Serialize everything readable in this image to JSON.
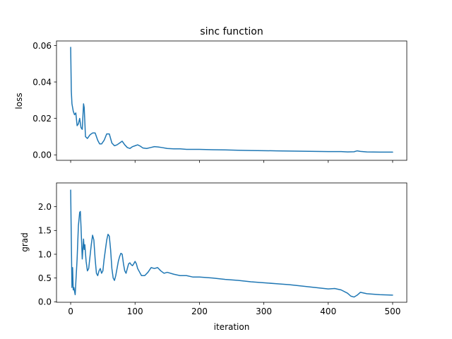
{
  "chart_data": [
    {
      "type": "line",
      "title": "sinc function",
      "xlabel": "",
      "ylabel": "loss",
      "xlim": [
        -22,
        522
      ],
      "ylim": [
        -0.003,
        0.0625
      ],
      "xticks": [
        0,
        100,
        200,
        300,
        400,
        500
      ],
      "xtick_labels_visible": false,
      "yticks": [
        0.0,
        0.02,
        0.04,
        0.06
      ],
      "ytick_labels": [
        "0.00",
        "0.02",
        "0.04",
        "0.06"
      ],
      "color": "#1f77b4",
      "series": [
        {
          "x": [
            0,
            1,
            2,
            4,
            6,
            8,
            10,
            12,
            14,
            16,
            18,
            20,
            21,
            23,
            26,
            30,
            34,
            38,
            42,
            45,
            48,
            52,
            56,
            60,
            64,
            68,
            72,
            76,
            80,
            84,
            88,
            92,
            96,
            100,
            104,
            108,
            112,
            118,
            124,
            130,
            136,
            142,
            150,
            160,
            170,
            180,
            190,
            200,
            220,
            240,
            260,
            280,
            300,
            320,
            340,
            360,
            380,
            400,
            420,
            430,
            440,
            445,
            450,
            460,
            480,
            500
          ],
          "y": [
            0.059,
            0.035,
            0.028,
            0.024,
            0.022,
            0.023,
            0.016,
            0.017,
            0.02,
            0.015,
            0.014,
            0.028,
            0.026,
            0.01,
            0.009,
            0.011,
            0.012,
            0.012,
            0.008,
            0.006,
            0.006,
            0.008,
            0.0115,
            0.0115,
            0.0065,
            0.005,
            0.0055,
            0.0065,
            0.0075,
            0.0055,
            0.004,
            0.0035,
            0.0045,
            0.005,
            0.0055,
            0.0048,
            0.0038,
            0.0035,
            0.004,
            0.0045,
            0.0043,
            0.004,
            0.0035,
            0.0033,
            0.0033,
            0.003,
            0.003,
            0.003,
            0.0028,
            0.0027,
            0.0025,
            0.0024,
            0.0023,
            0.0022,
            0.0021,
            0.002,
            0.0019,
            0.0018,
            0.0018,
            0.0016,
            0.0017,
            0.0022,
            0.0019,
            0.0016,
            0.0015,
            0.0015
          ]
        }
      ]
    },
    {
      "type": "line",
      "title": "",
      "xlabel": "iteration",
      "ylabel": "grad",
      "xlim": [
        -22,
        522
      ],
      "ylim": [
        -0.01,
        2.5
      ],
      "xticks": [
        0,
        100,
        200,
        300,
        400,
        500
      ],
      "xtick_labels": [
        "0",
        "100",
        "200",
        "300",
        "400",
        "500"
      ],
      "yticks": [
        0.0,
        0.5,
        1.0,
        1.5,
        2.0
      ],
      "ytick_labels": [
        "0.0",
        "0.5",
        "1.0",
        "1.5",
        "2.0"
      ],
      "color": "#1f77b4",
      "series": [
        {
          "x": [
            0,
            1,
            2,
            3,
            4,
            5,
            6,
            7,
            8,
            10,
            12,
            14,
            15,
            16,
            18,
            20,
            21,
            22,
            24,
            26,
            28,
            30,
            32,
            34,
            36,
            38,
            40,
            42,
            44,
            46,
            48,
            50,
            52,
            54,
            56,
            58,
            60,
            62,
            64,
            66,
            68,
            70,
            72,
            74,
            76,
            78,
            80,
            82,
            84,
            86,
            88,
            90,
            92,
            94,
            96,
            98,
            100,
            102,
            104,
            106,
            108,
            110,
            115,
            120,
            125,
            130,
            135,
            140,
            145,
            150,
            160,
            170,
            180,
            190,
            200,
            220,
            240,
            260,
            280,
            300,
            320,
            340,
            360,
            380,
            400,
            410,
            420,
            430,
            435,
            440,
            445,
            450,
            460,
            480,
            500
          ],
          "y": [
            2.35,
            1.3,
            0.3,
            0.72,
            0.25,
            0.3,
            0.22,
            0.15,
            0.4,
            0.9,
            1.6,
            1.88,
            1.9,
            1.6,
            0.9,
            1.32,
            1.1,
            1.2,
            0.85,
            0.65,
            0.7,
            0.95,
            1.2,
            1.4,
            1.3,
            0.9,
            0.6,
            0.55,
            0.65,
            0.7,
            0.6,
            0.65,
            0.9,
            1.1,
            1.3,
            1.42,
            1.38,
            1.1,
            0.7,
            0.5,
            0.45,
            0.55,
            0.7,
            0.85,
            0.95,
            1.02,
            1.0,
            0.8,
            0.65,
            0.6,
            0.7,
            0.8,
            0.82,
            0.78,
            0.76,
            0.8,
            0.85,
            0.8,
            0.7,
            0.65,
            0.6,
            0.55,
            0.55,
            0.62,
            0.72,
            0.7,
            0.72,
            0.65,
            0.6,
            0.62,
            0.58,
            0.55,
            0.55,
            0.52,
            0.52,
            0.5,
            0.47,
            0.45,
            0.42,
            0.4,
            0.38,
            0.36,
            0.33,
            0.3,
            0.27,
            0.28,
            0.25,
            0.18,
            0.12,
            0.1,
            0.14,
            0.2,
            0.17,
            0.15,
            0.14
          ]
        }
      ]
    }
  ]
}
